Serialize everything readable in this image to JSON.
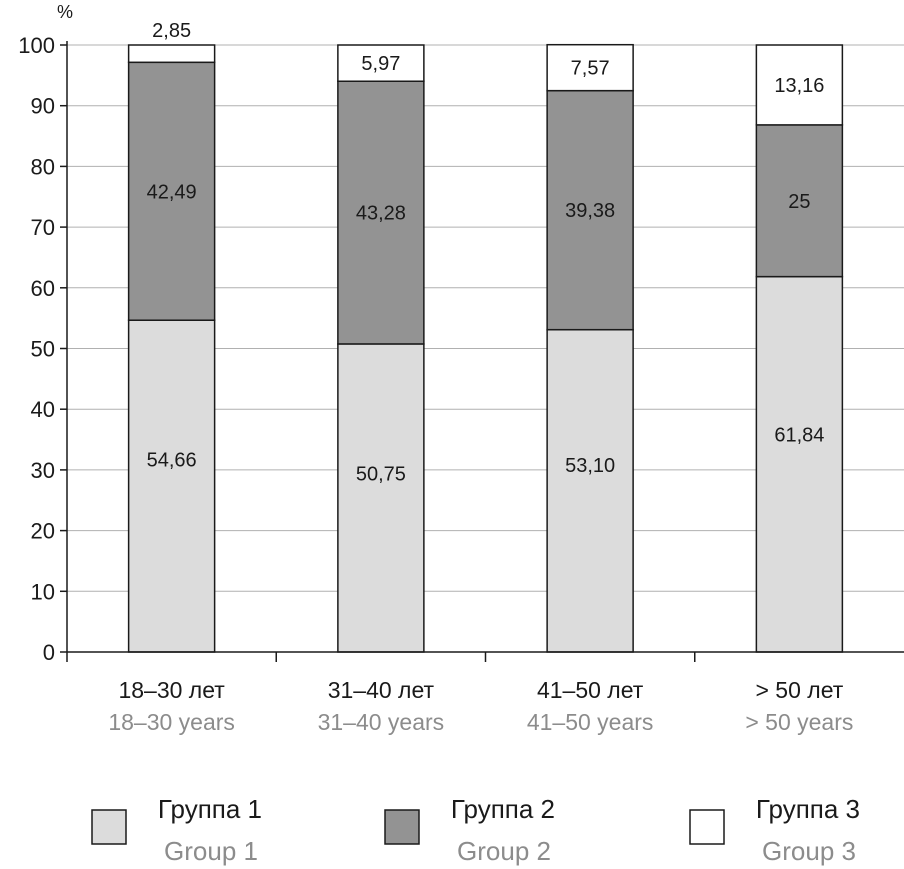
{
  "chart_data": {
    "type": "bar",
    "stacked": true,
    "title": "",
    "xlabel": "",
    "ylabel": "%",
    "ylim": [
      0,
      100
    ],
    "yticks": [
      0,
      10,
      20,
      30,
      40,
      50,
      60,
      70,
      80,
      90,
      100
    ],
    "grid": true,
    "legend_position": "bottom",
    "categories": [
      {
        "ru": "18–30 лет",
        "en": "18–30 years"
      },
      {
        "ru": "31–40 лет",
        "en": "31–40 years"
      },
      {
        "ru": "41–50 лет",
        "en": "41–50 years"
      },
      {
        "ru": "> 50 лет",
        "en": "> 50 years"
      }
    ],
    "series": [
      {
        "name_ru": "Группа 1",
        "name_en": "Group 1",
        "color": "#dcdcdc",
        "values": [
          54.66,
          50.75,
          53.1,
          61.84
        ],
        "labels": [
          "54,66",
          "50,75",
          "53,10",
          "61,84"
        ]
      },
      {
        "name_ru": "Группа 2",
        "name_en": "Group 2",
        "color": "#939393",
        "values": [
          42.49,
          43.28,
          39.38,
          25
        ],
        "labels": [
          "42,49",
          "43,28",
          "39,38",
          "25"
        ]
      },
      {
        "name_ru": "Группа 3",
        "name_en": "Group 3",
        "color": "#ffffff",
        "values": [
          2.85,
          5.97,
          7.57,
          13.16
        ],
        "labels": [
          "2,85",
          "5,97",
          "7,57",
          "13,16"
        ]
      }
    ]
  }
}
